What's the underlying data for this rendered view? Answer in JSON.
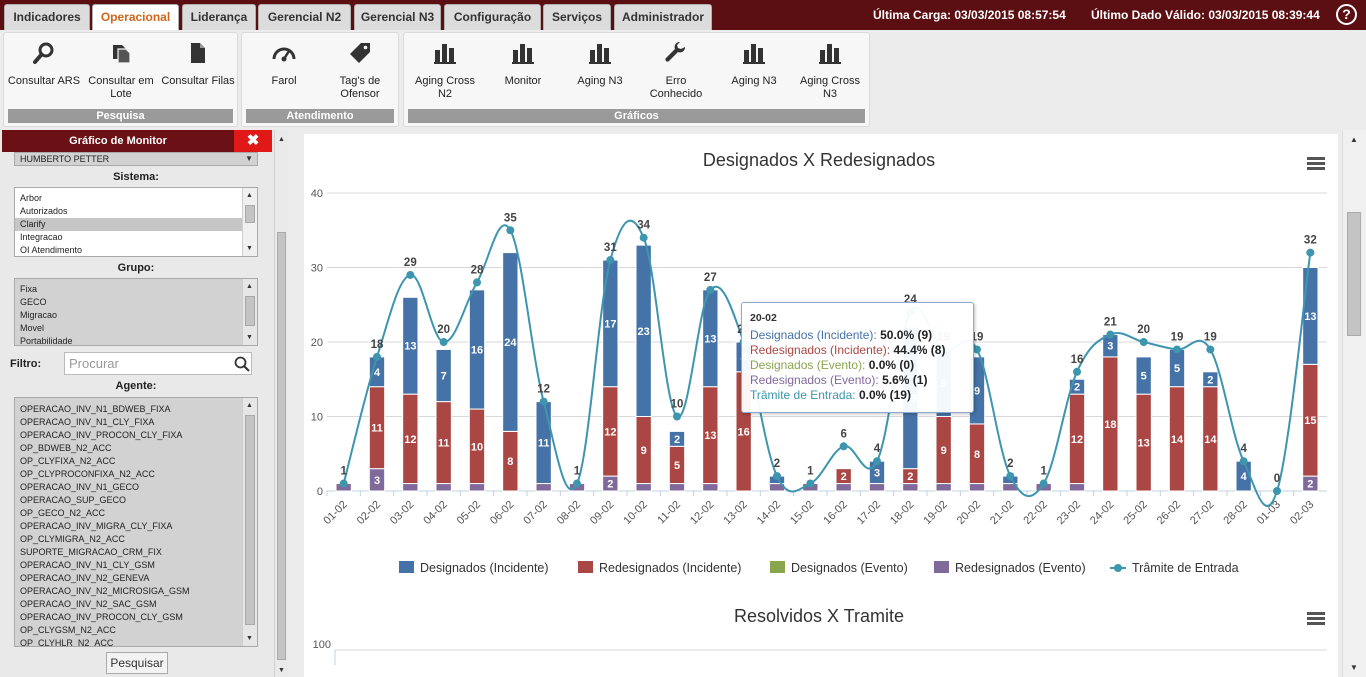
{
  "nav": {
    "tabs": [
      "Indicadores",
      "Operacional",
      "Liderança",
      "Gerencial N2",
      "Gerencial N3",
      "Configuração",
      "Serviços",
      "Administrador"
    ],
    "active": "Operacional"
  },
  "header": {
    "ultima_carga": "Última Carga: 03/03/2015 08:57:54",
    "ultimo_dado": "Último Dado Válido: 03/03/2015 08:39:44",
    "help": "?"
  },
  "ribbon": {
    "pesquisa": {
      "label": "Pesquisa",
      "buttons": [
        {
          "label": "Consultar ARS",
          "icon": "search-icon"
        },
        {
          "label": "Consultar em Lote",
          "icon": "copy-icon"
        },
        {
          "label": "Consultar Filas",
          "icon": "document-icon"
        }
      ]
    },
    "atendimento": {
      "label": "Atendimento",
      "buttons": [
        {
          "label": "Farol",
          "icon": "gauge-icon"
        },
        {
          "label": "Tag's de Ofensor",
          "icon": "tag-icon"
        }
      ]
    },
    "graficos": {
      "label": "Gráficos",
      "buttons": [
        {
          "label": "Aging Cross N2",
          "icon": "bar-chart-icon"
        },
        {
          "label": "Monitor",
          "icon": "bar-chart-icon"
        },
        {
          "label": "Aging N3",
          "icon": "bar-chart-icon"
        },
        {
          "label": "Erro Conhecido",
          "icon": "wrench-icon"
        },
        {
          "label": "Aging N3",
          "icon": "bar-chart-icon"
        },
        {
          "label": "Aging Cross N3",
          "icon": "bar-chart-icon"
        }
      ]
    }
  },
  "panel": {
    "title": "Gráfico de Monitor",
    "close": "✖",
    "top_item": "HUMBERTO PETTER",
    "sistema_label": "Sistema:",
    "sistema": [
      "Arbor",
      "Autorizados",
      "Clarify",
      "Integracao",
      "OI Atendimento"
    ],
    "sistema_selected": "Clarify",
    "grupo_label": "Grupo:",
    "grupo": [
      "Fixa",
      "GECO",
      "Migracao",
      "Movel",
      "Portabilidade"
    ],
    "filtro_label": "Filtro:",
    "filtro_placeholder": "Procurar",
    "agente_label": "Agente:",
    "agentes": [
      "OPERACAO_INV_N1_BDWEB_FIXA",
      "OPERACAO_INV_N1_CLY_FIXA",
      "OPERACAO_INV_PROCON_CLY_FIXA",
      "OP_BDWEB_N2_ACC",
      "OP_CLYFIXA_N2_ACC",
      "OP_CLYPROCONFIXA_N2_ACC",
      "OPERACAO_INV_N1_GECO",
      "OPERACAO_SUP_GECO",
      "OP_GECO_N2_ACC",
      "OPERACAO_INV_MIGRA_CLY_FIXA",
      "OP_CLYMIGRA_N2_ACC",
      "SUPORTE_MIGRACAO_CRM_FIX",
      "OPERACAO_INV_N1_CLY_GSM",
      "OPERACAO_INV_N2_GENEVA",
      "OPERACAO_INV_N2_MICROSIGA_GSM",
      "OPERACAO_INV_N2_SAC_GSM",
      "OPERACAO_INV_PROCON_CLY_GSM",
      "OP_CLYGSM_N2_ACC",
      "OP_CLYHLR_N2_ACC"
    ],
    "search_button": "Pesquisar"
  },
  "chart_data": [
    {
      "type": "bar",
      "title": "Designados X Redesignados",
      "ylim": [
        0,
        40
      ],
      "yticks": [
        0,
        10,
        20,
        30,
        40
      ],
      "categories": [
        "01-02",
        "02-02",
        "03-02",
        "04-02",
        "05-02",
        "06-02",
        "07-02",
        "08-02",
        "09-02",
        "10-02",
        "11-02",
        "12-02",
        "13-02",
        "14-02",
        "15-02",
        "16-02",
        "17-02",
        "18-02",
        "19-02",
        "20-02",
        "21-02",
        "22-02",
        "23-02",
        "24-02",
        "25-02",
        "26-02",
        "27-02",
        "28-02",
        "01-03",
        "02-03"
      ],
      "series": [
        {
          "name": "Designados (Incidente)",
          "color": "#4572a7",
          "values": [
            0,
            4,
            13,
            7,
            16,
            24,
            11,
            0,
            17,
            23,
            2,
            13,
            4,
            1,
            0,
            0,
            3,
            19,
            9,
            9,
            1,
            0,
            2,
            3,
            5,
            5,
            2,
            4,
            0,
            13
          ]
        },
        {
          "name": "Redesignados (Incidente)",
          "color": "#aa4643",
          "values": [
            0,
            11,
            12,
            11,
            10,
            8,
            0,
            0,
            12,
            9,
            5,
            13,
            16,
            0,
            0,
            2,
            0,
            2,
            9,
            8,
            0,
            0,
            12,
            18,
            13,
            14,
            14,
            0,
            0,
            15
          ]
        },
        {
          "name": "Designados (Evento)",
          "color": "#89a54e",
          "values": [
            0,
            0,
            0,
            0,
            0,
            0,
            0,
            0,
            0,
            0,
            0,
            0,
            0,
            0,
            0,
            0,
            0,
            0,
            0,
            0,
            0,
            0,
            0,
            0,
            0,
            0,
            0,
            0,
            0,
            0
          ]
        },
        {
          "name": "Redesignados (Evento)",
          "color": "#80699b",
          "values": [
            1,
            3,
            1,
            1,
            1,
            0,
            1,
            1,
            2,
            1,
            1,
            1,
            0,
            1,
            1,
            1,
            1,
            1,
            1,
            1,
            1,
            1,
            1,
            0,
            0,
            0,
            0,
            0,
            0,
            2
          ]
        },
        {
          "name": "Trâmite de Entrada",
          "color": "#3d96ae",
          "type": "line",
          "values": [
            1,
            18,
            29,
            20,
            28,
            35,
            12,
            1,
            31,
            34,
            10,
            27,
            20,
            2,
            1,
            6,
            4,
            24,
            19,
            19,
            2,
            1,
            16,
            21,
            20,
            19,
            19,
            4,
            0,
            32
          ]
        }
      ],
      "tooltip": {
        "title": "20-02",
        "lines": [
          {
            "text": "Designados (Incidente): 50.0% (9)",
            "color": "#4572a7"
          },
          {
            "text": "Redesignados (Incidente): 44.4% (8)",
            "color": "#aa4643"
          },
          {
            "text": "Designados (Evento): 0.0% (0)",
            "color": "#89a54e"
          },
          {
            "text": "Redesignados (Evento): 5.6% (1)",
            "color": "#80699b"
          },
          {
            "text": "Trâmite de Entrada: 0.0% (19)",
            "color": "#3d96ae"
          }
        ]
      }
    },
    {
      "type": "bar",
      "title": "Resolvidos X Tramite",
      "ylim": [
        0,
        100
      ],
      "yticks": [
        100
      ]
    }
  ]
}
